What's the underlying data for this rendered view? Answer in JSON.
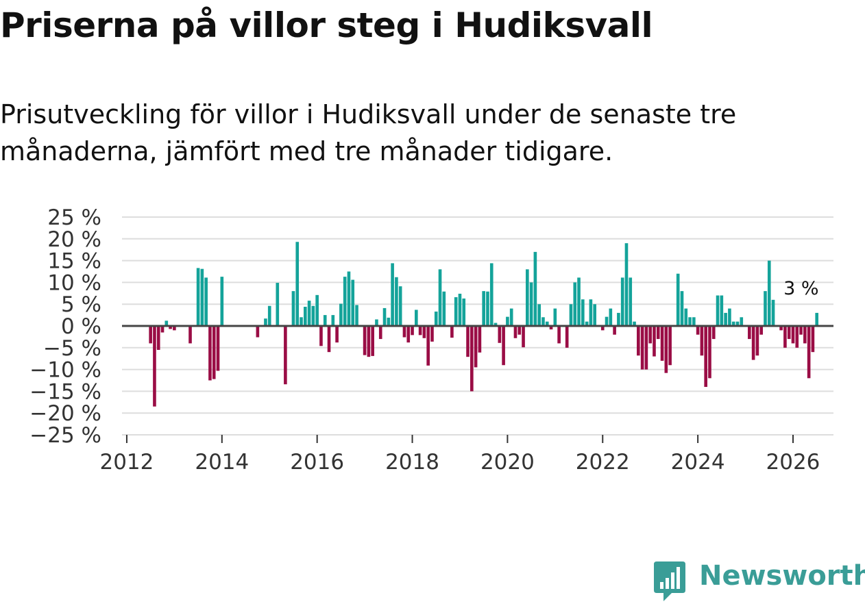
{
  "title": "Priserna på villor steg i Hudiksvall",
  "subtitle": "Prisutveckling för villor i Hudiksvall under de senaste tre månaderna, jämfört med tre månader tidigare.",
  "brand": {
    "name": "Newsworthy",
    "icon": "newsworthy-logo-icon",
    "color": "#3a9d97"
  },
  "chart_data": {
    "type": "bar",
    "title": "Priserna på villor steg i Hudiksvall",
    "xlabel": "",
    "ylabel": "",
    "ylim": [
      -25,
      25
    ],
    "xlim": [
      2011.9,
      2026.85
    ],
    "grid": true,
    "legend": "none",
    "colors": {
      "positive": "#14a39a",
      "negative": "#9a0d45",
      "zero_line": "#444444",
      "grid": "#dddddd"
    },
    "yticks": [
      25,
      20,
      15,
      10,
      5,
      0,
      -5,
      -10,
      -15,
      -20,
      -25
    ],
    "ytick_labels": [
      "25 %",
      "20 %",
      "15 %",
      "10 %",
      "5 %",
      "0 %",
      "−5 %",
      "−10 %",
      "−15 %",
      "−20 %",
      "−25 %"
    ],
    "xticks": [
      2012,
      2014,
      2016,
      2018,
      2020,
      2022,
      2024,
      2026
    ],
    "xtick_labels": [
      "2012",
      "2014",
      "2016",
      "2018",
      "2020",
      "2022",
      "2024",
      "2026"
    ],
    "annotation": {
      "text": "3 %",
      "x": 2026.17
    },
    "start": [
      2012,
      1
    ],
    "values": [
      0,
      0,
      0,
      0,
      0,
      0,
      -4,
      -18.5,
      -5.5,
      -1.5,
      1.2,
      -0.7,
      -1,
      0,
      0,
      0,
      -4,
      0,
      13.3,
      13.1,
      11.1,
      -12.5,
      -12.2,
      -10.3,
      11.3,
      0,
      0,
      0,
      0,
      0,
      0,
      0,
      0,
      -2.6,
      0,
      1.7,
      4.6,
      0,
      9.9,
      0,
      -13.4,
      0,
      8,
      19.3,
      2,
      4.4,
      5.8,
      4.6,
      7.1,
      -4.6,
      2.5,
      -6,
      2.5,
      -3.8,
      5.1,
      11.3,
      12.5,
      10.6,
      4.8,
      0,
      -6.7,
      -7.1,
      -6.9,
      1.5,
      -3,
      4.1,
      1.9,
      14.4,
      11.2,
      9.1,
      -2.6,
      -3.8,
      -2.1,
      3.7,
      -2.1,
      -2.8,
      -9.1,
      -3.6,
      3.3,
      13,
      7.9,
      0,
      -2.7,
      6.6,
      7.4,
      6.3,
      -7.1,
      -15,
      -9.5,
      -6.1,
      8,
      7.9,
      14.4,
      0.7,
      -3.9,
      -9,
      2.1,
      4,
      -2.8,
      -2,
      -4.9,
      13,
      10,
      17,
      5,
      2,
      1,
      -0.8,
      4,
      -4,
      0,
      -5,
      5,
      10,
      11.1,
      6.1,
      1,
      6.1,
      5,
      0,
      -1,
      2.1,
      4,
      -2,
      3,
      11.1,
      19,
      11.1,
      1,
      -6.8,
      -10,
      -10,
      -4,
      -7,
      -3,
      -8,
      -10.8,
      -9,
      0,
      12,
      8,
      4,
      2,
      2,
      -2,
      -6.8,
      -14,
      -12,
      -3,
      7,
      7,
      3,
      4,
      1,
      1,
      2,
      0,
      -3,
      -7.8,
      -6.8,
      -2,
      8,
      15,
      6,
      0,
      -1,
      -5,
      -3,
      -4,
      -5,
      -2,
      -4,
      -12,
      -6,
      3
    ]
  }
}
